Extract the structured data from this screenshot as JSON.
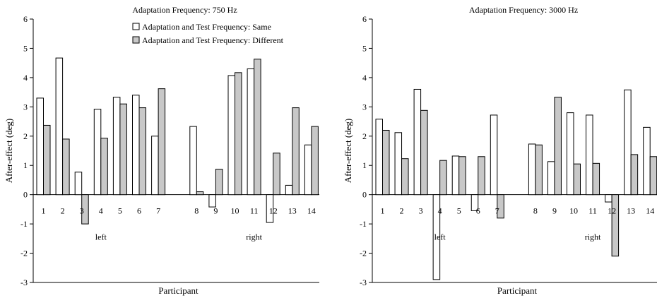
{
  "chart_data": [
    {
      "type": "bar",
      "title": "Adaptation Frequency: 750 Hz",
      "xlabel": "Participant",
      "ylabel": "After-effect (deg)",
      "ylim": [
        -3,
        6
      ],
      "yticks": [
        -3,
        -2,
        -1,
        0,
        1,
        2,
        3,
        4,
        5,
        6
      ],
      "categories": [
        "1",
        "2",
        "3",
        "4",
        "5",
        "6",
        "7",
        "8",
        "9",
        "10",
        "11",
        "12",
        "13",
        "14"
      ],
      "groups": [
        {
          "label": "left",
          "categories": [
            "1",
            "2",
            "3",
            "4",
            "5",
            "6",
            "7"
          ]
        },
        {
          "label": "right",
          "categories": [
            "8",
            "9",
            "10",
            "11",
            "12",
            "13",
            "14"
          ]
        }
      ],
      "legend": "top-right",
      "series": [
        {
          "name": "Adaptation and Test Frequency: Same",
          "color": "#ffffff",
          "values": [
            3.3,
            4.67,
            0.77,
            2.92,
            3.33,
            3.4,
            2.0,
            2.33,
            -0.42,
            4.07,
            4.3,
            -0.95,
            0.32,
            1.7
          ]
        },
        {
          "name": "Adaptation and Test Frequency: Different",
          "color": "#c8c8c8",
          "values": [
            2.37,
            1.9,
            -1.0,
            1.93,
            3.1,
            2.97,
            3.62,
            0.1,
            0.87,
            4.17,
            4.63,
            1.42,
            2.97,
            2.33
          ]
        }
      ]
    },
    {
      "type": "bar",
      "title": "Adaptation Frequency: 3000 Hz",
      "xlabel": "Participant",
      "ylabel": "After-effect (deg)",
      "ylim": [
        -3,
        6
      ],
      "yticks": [
        -3,
        -2,
        -1,
        0,
        1,
        2,
        3,
        4,
        5,
        6
      ],
      "categories": [
        "1",
        "2",
        "3",
        "4",
        "5",
        "6",
        "7",
        "8",
        "9",
        "10",
        "11",
        "12",
        "13",
        "14"
      ],
      "groups": [
        {
          "label": "left",
          "categories": [
            "1",
            "2",
            "3",
            "4",
            "5",
            "6",
            "7"
          ]
        },
        {
          "label": "right",
          "categories": [
            "8",
            "9",
            "10",
            "11",
            "12",
            "13",
            "14"
          ]
        }
      ],
      "series": [
        {
          "name": "Adaptation and Test Frequency: Same",
          "color": "#ffffff",
          "values": [
            2.58,
            2.12,
            3.6,
            -2.9,
            1.32,
            -0.55,
            2.72,
            1.73,
            1.13,
            2.8,
            2.72,
            -0.25,
            3.58,
            2.3
          ]
        },
        {
          "name": "Adaptation and Test Frequency: Different",
          "color": "#c8c8c8",
          "values": [
            2.2,
            1.23,
            2.88,
            1.17,
            1.3,
            1.3,
            -0.8,
            1.7,
            3.33,
            1.05,
            1.07,
            -2.1,
            1.37,
            1.3
          ]
        }
      ]
    }
  ]
}
